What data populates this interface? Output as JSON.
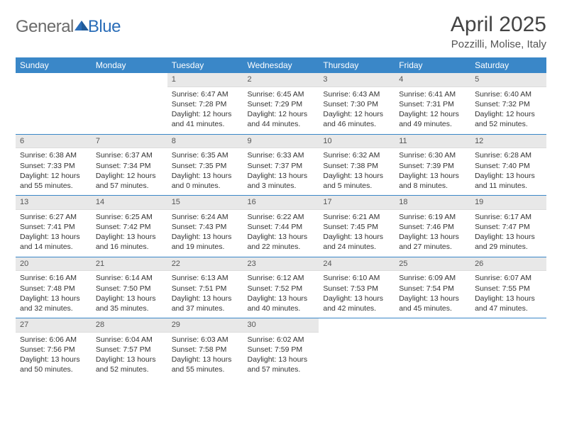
{
  "brand": {
    "part1": "General",
    "part2": "Blue"
  },
  "title": "April 2025",
  "location": "Pozzilli, Molise, Italy",
  "colors": {
    "header_bg": "#3a87c8",
    "header_text": "#ffffff",
    "daynum_bg": "#e8e8e8",
    "row_border": "#3a87c8",
    "logo_gray": "#6b6b6b",
    "logo_blue": "#2a6db8"
  },
  "day_names": [
    "Sunday",
    "Monday",
    "Tuesday",
    "Wednesday",
    "Thursday",
    "Friday",
    "Saturday"
  ],
  "weeks": [
    [
      null,
      null,
      {
        "n": "1",
        "sr": "6:47 AM",
        "ss": "7:28 PM",
        "dl": "12 hours and 41 minutes."
      },
      {
        "n": "2",
        "sr": "6:45 AM",
        "ss": "7:29 PM",
        "dl": "12 hours and 44 minutes."
      },
      {
        "n": "3",
        "sr": "6:43 AM",
        "ss": "7:30 PM",
        "dl": "12 hours and 46 minutes."
      },
      {
        "n": "4",
        "sr": "6:41 AM",
        "ss": "7:31 PM",
        "dl": "12 hours and 49 minutes."
      },
      {
        "n": "5",
        "sr": "6:40 AM",
        "ss": "7:32 PM",
        "dl": "12 hours and 52 minutes."
      }
    ],
    [
      {
        "n": "6",
        "sr": "6:38 AM",
        "ss": "7:33 PM",
        "dl": "12 hours and 55 minutes."
      },
      {
        "n": "7",
        "sr": "6:37 AM",
        "ss": "7:34 PM",
        "dl": "12 hours and 57 minutes."
      },
      {
        "n": "8",
        "sr": "6:35 AM",
        "ss": "7:35 PM",
        "dl": "13 hours and 0 minutes."
      },
      {
        "n": "9",
        "sr": "6:33 AM",
        "ss": "7:37 PM",
        "dl": "13 hours and 3 minutes."
      },
      {
        "n": "10",
        "sr": "6:32 AM",
        "ss": "7:38 PM",
        "dl": "13 hours and 5 minutes."
      },
      {
        "n": "11",
        "sr": "6:30 AM",
        "ss": "7:39 PM",
        "dl": "13 hours and 8 minutes."
      },
      {
        "n": "12",
        "sr": "6:28 AM",
        "ss": "7:40 PM",
        "dl": "13 hours and 11 minutes."
      }
    ],
    [
      {
        "n": "13",
        "sr": "6:27 AM",
        "ss": "7:41 PM",
        "dl": "13 hours and 14 minutes."
      },
      {
        "n": "14",
        "sr": "6:25 AM",
        "ss": "7:42 PM",
        "dl": "13 hours and 16 minutes."
      },
      {
        "n": "15",
        "sr": "6:24 AM",
        "ss": "7:43 PM",
        "dl": "13 hours and 19 minutes."
      },
      {
        "n": "16",
        "sr": "6:22 AM",
        "ss": "7:44 PM",
        "dl": "13 hours and 22 minutes."
      },
      {
        "n": "17",
        "sr": "6:21 AM",
        "ss": "7:45 PM",
        "dl": "13 hours and 24 minutes."
      },
      {
        "n": "18",
        "sr": "6:19 AM",
        "ss": "7:46 PM",
        "dl": "13 hours and 27 minutes."
      },
      {
        "n": "19",
        "sr": "6:17 AM",
        "ss": "7:47 PM",
        "dl": "13 hours and 29 minutes."
      }
    ],
    [
      {
        "n": "20",
        "sr": "6:16 AM",
        "ss": "7:48 PM",
        "dl": "13 hours and 32 minutes."
      },
      {
        "n": "21",
        "sr": "6:14 AM",
        "ss": "7:50 PM",
        "dl": "13 hours and 35 minutes."
      },
      {
        "n": "22",
        "sr": "6:13 AM",
        "ss": "7:51 PM",
        "dl": "13 hours and 37 minutes."
      },
      {
        "n": "23",
        "sr": "6:12 AM",
        "ss": "7:52 PM",
        "dl": "13 hours and 40 minutes."
      },
      {
        "n": "24",
        "sr": "6:10 AM",
        "ss": "7:53 PM",
        "dl": "13 hours and 42 minutes."
      },
      {
        "n": "25",
        "sr": "6:09 AM",
        "ss": "7:54 PM",
        "dl": "13 hours and 45 minutes."
      },
      {
        "n": "26",
        "sr": "6:07 AM",
        "ss": "7:55 PM",
        "dl": "13 hours and 47 minutes."
      }
    ],
    [
      {
        "n": "27",
        "sr": "6:06 AM",
        "ss": "7:56 PM",
        "dl": "13 hours and 50 minutes."
      },
      {
        "n": "28",
        "sr": "6:04 AM",
        "ss": "7:57 PM",
        "dl": "13 hours and 52 minutes."
      },
      {
        "n": "29",
        "sr": "6:03 AM",
        "ss": "7:58 PM",
        "dl": "13 hours and 55 minutes."
      },
      {
        "n": "30",
        "sr": "6:02 AM",
        "ss": "7:59 PM",
        "dl": "13 hours and 57 minutes."
      },
      null,
      null,
      null
    ]
  ],
  "labels": {
    "sunrise": "Sunrise:",
    "sunset": "Sunset:",
    "daylight": "Daylight:"
  }
}
